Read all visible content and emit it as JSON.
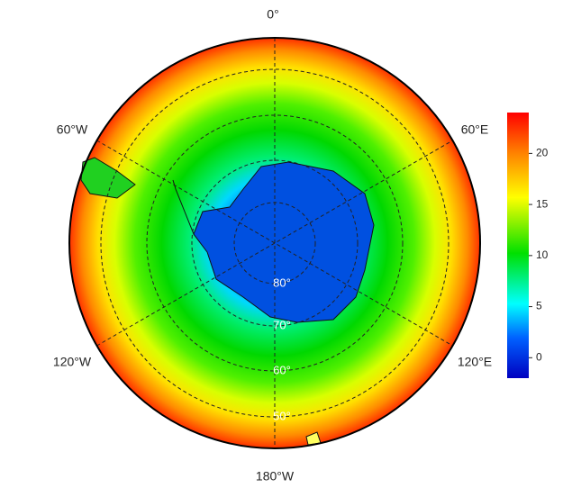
{
  "map": {
    "longitude_labels": [
      "0°",
      "60°E",
      "120°E",
      "180°W",
      "120°W",
      "60°W"
    ],
    "latitude_labels": [
      "80°",
      "70°",
      "60°",
      "50°"
    ]
  },
  "colorbar": {
    "lim": [
      -2,
      24
    ],
    "ticks": [
      0,
      5,
      10,
      15,
      20
    ]
  }
}
